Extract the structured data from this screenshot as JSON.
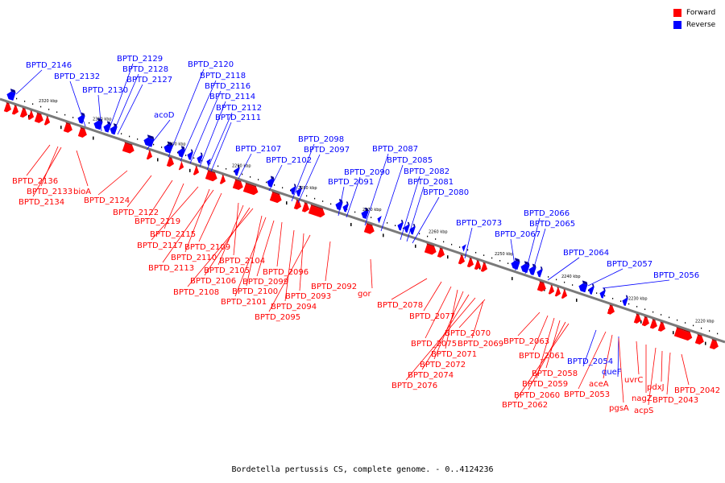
{
  "legend": {
    "forward": "Forward",
    "reverse": "Reverse"
  },
  "colors": {
    "forward": "#ff0000",
    "reverse": "#0000ff",
    "backbone": "#808080"
  },
  "caption": "Bordetella pertussis CS, complete genome. - 0..4124236",
  "ticks": [
    "2320 kbp",
    "2310 kbp",
    "2300 kbp",
    "2290 kbp",
    "2280 kbp",
    "2270 kbp",
    "2260 kbp",
    "2250 kbp",
    "2240 kbp",
    "2230 kbp",
    "2220 kbp"
  ],
  "reverse_labels": [
    "BPTD_2146",
    "BPTD_2132",
    "BPTD_2130",
    "BPTD_2129",
    "BPTD_2128",
    "BPTD_2127",
    "acoD",
    "BPTD_2120",
    "BPTD_2118",
    "BPTD_2116",
    "BPTD_2114",
    "BPTD_2112",
    "BPTD_2111",
    "BPTD_2107",
    "BPTD_2102",
    "BPTD_2098",
    "BPTD_2097",
    "BPTD_2091",
    "BPTD_2090",
    "BPTD_2087",
    "BPTD_2085",
    "BPTD_2082",
    "BPTD_2081",
    "BPTD_2080",
    "BPTD_2073",
    "BPTD_2067",
    "BPTD_2066",
    "BPTD_2065",
    "BPTD_2064",
    "BPTD_2057",
    "BPTD_2056",
    "BPTD_2054",
    "queF"
  ],
  "forward_labels": [
    "BPTD_2136",
    "BPTD_2133",
    "BPTD_2134",
    "bioA",
    "BPTD_2124",
    "BPTD_2122",
    "BPTD_2119",
    "BPTD_2115",
    "BPTD_2117",
    "BPTD_2110",
    "BPTD_2113",
    "BPTD_2109",
    "BPTD_2104",
    "BPTD_2105",
    "BPTD_2106",
    "BPTD_2108",
    "BPTD_2100",
    "BPTD_2101",
    "BPTD_2099",
    "BPTD_2096",
    "BPTD_2094",
    "BPTD_2093",
    "BPTD_2095",
    "BPTD_2092",
    "gor",
    "BPTD_2078",
    "BPTD_2077",
    "BPTD_2075",
    "BPTD_2071",
    "BPTD_2072",
    "BPTD_2074",
    "BPTD_2076",
    "BPTD_2070",
    "BPTD_2069",
    "BPTD_2063",
    "BPTD_2061",
    "BPTD_2059",
    "BPTD_2058",
    "BPTD_2060",
    "BPTD_2062",
    "BPTD_2053",
    "aceA",
    "pgsA",
    "uvrC",
    "nagZ",
    "acpS",
    "pdxJ",
    "BPTD_2043",
    "BPTD_2042"
  ]
}
